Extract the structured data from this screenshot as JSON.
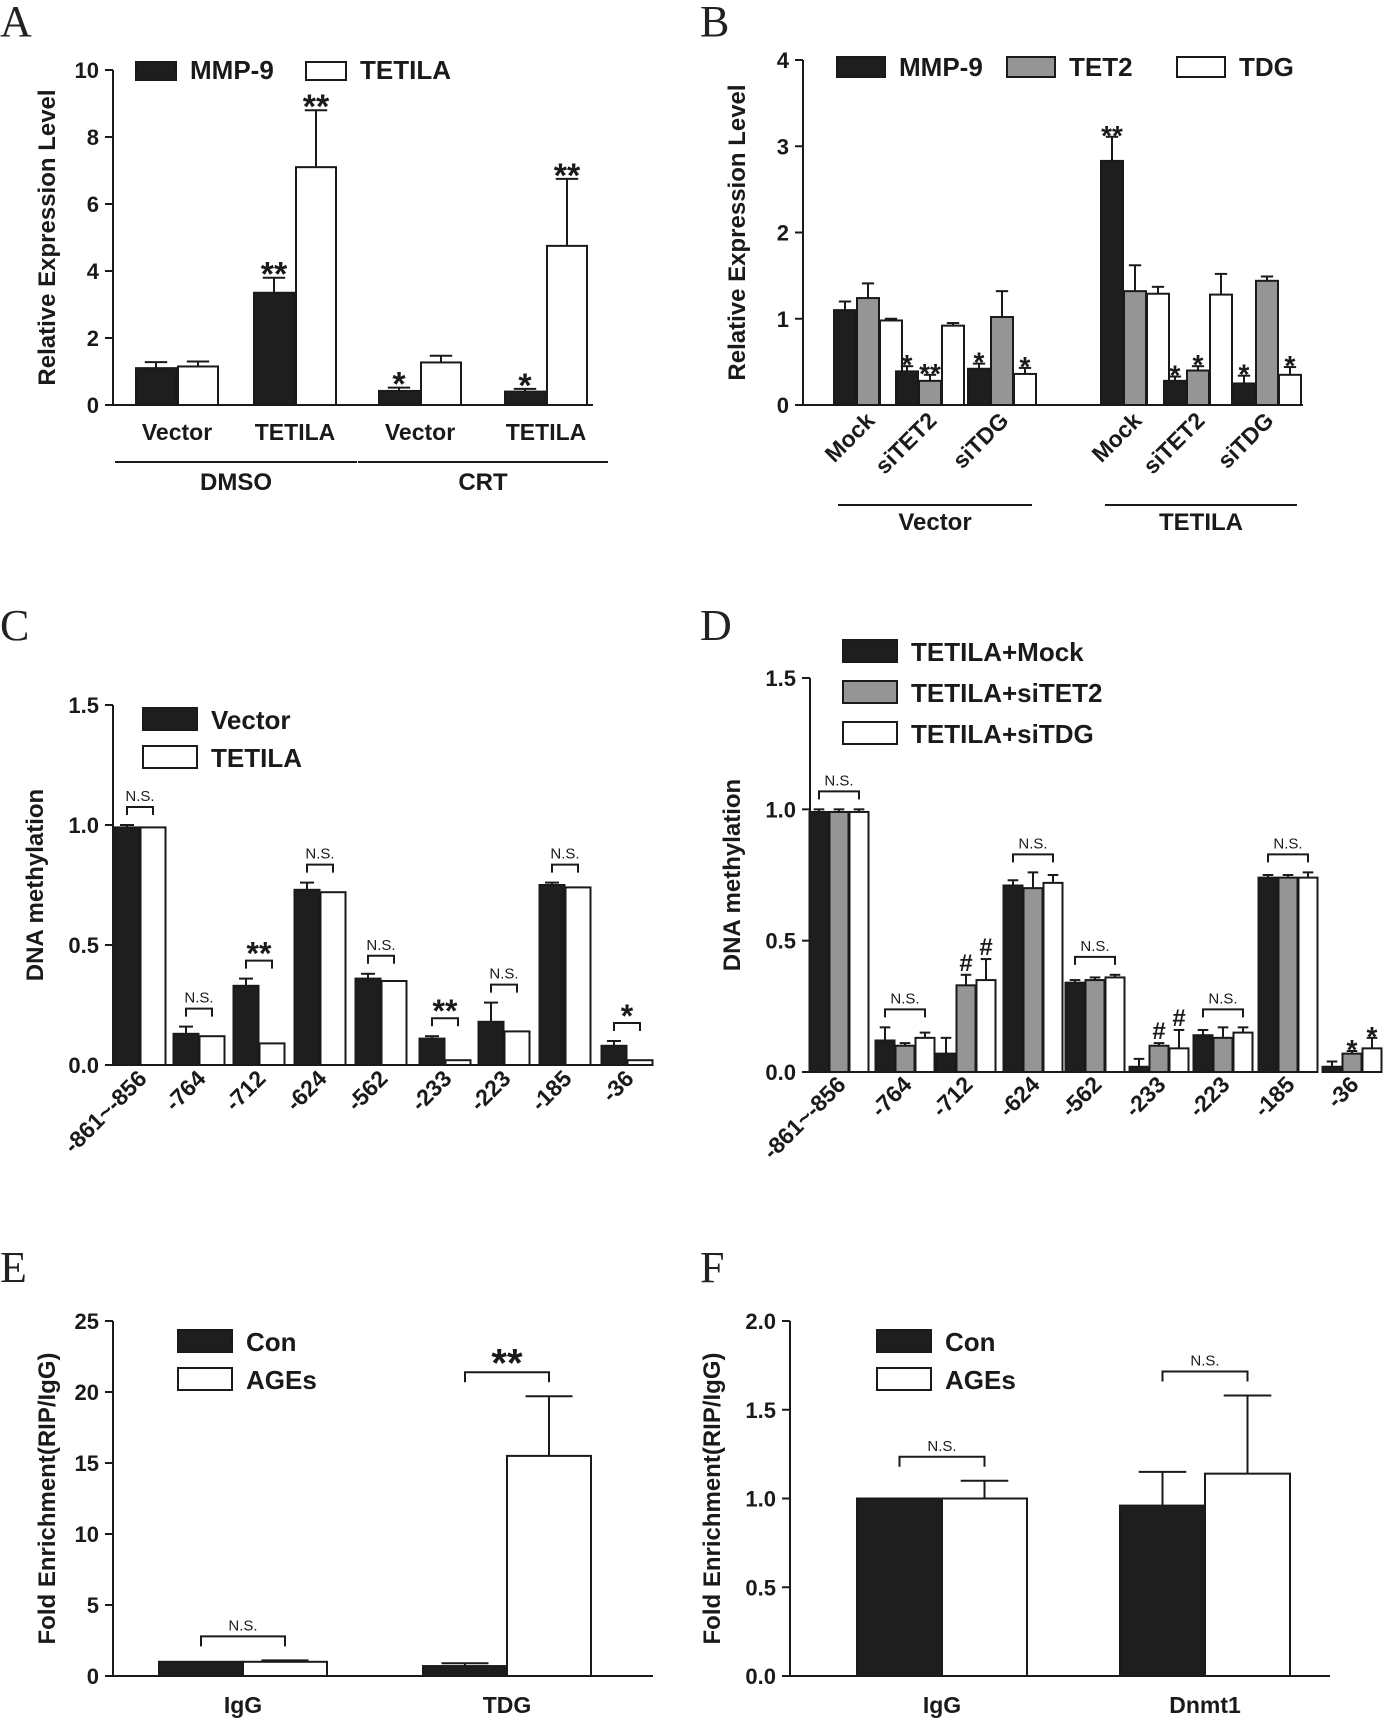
{
  "chart_data": [
    {
      "panel": "A",
      "type": "bar",
      "ylabel": "Relative Expression Level",
      "ylim": [
        0,
        10
      ],
      "yticks": [
        0,
        2,
        4,
        6,
        8,
        10
      ],
      "categories": [
        "Vector",
        "TETILA",
        "Vector",
        "TETILA"
      ],
      "groups": [
        {
          "label": "DMSO",
          "from": 0,
          "to": 1
        },
        {
          "label": "CRT",
          "from": 2,
          "to": 3
        }
      ],
      "series": [
        {
          "name": "MMP-9",
          "color": "#1e1e1e",
          "values": [
            1.1,
            3.35,
            0.42,
            0.4
          ],
          "errors": [
            0.18,
            0.45,
            0.1,
            0.08
          ],
          "sig": [
            "",
            "**",
            "*",
            "*"
          ]
        },
        {
          "name": "TETILA",
          "color": "#ffffff",
          "values": [
            1.15,
            7.1,
            1.27,
            4.75
          ],
          "errors": [
            0.15,
            1.7,
            0.2,
            2.0
          ],
          "sig": [
            "",
            "**",
            "",
            "**"
          ]
        }
      ]
    },
    {
      "panel": "B",
      "type": "bar",
      "ylabel": "Relative Expression Level",
      "ylim": [
        0,
        4
      ],
      "yticks": [
        0,
        1,
        2,
        3,
        4
      ],
      "categories": [
        "Mock",
        "siTET2",
        "siTDG",
        "Mock",
        "siTET2",
        "siTDG"
      ],
      "groups": [
        {
          "label": "Vector",
          "from": 0,
          "to": 2
        },
        {
          "label": "TETILA",
          "from": 3,
          "to": 5
        }
      ],
      "series": [
        {
          "name": "MMP-9",
          "color": "#1e1e1e",
          "values": [
            1.1,
            0.39,
            0.42,
            2.83,
            0.28,
            0.25
          ],
          "errors": [
            0.1,
            0.06,
            0.06,
            0.28,
            0.05,
            0.09
          ],
          "sig": [
            "",
            "*",
            "*",
            "**",
            "*",
            "*"
          ]
        },
        {
          "name": "TET2",
          "color": "#959595",
          "values": [
            1.24,
            0.28,
            1.02,
            1.32,
            0.4,
            1.44
          ],
          "errors": [
            0.17,
            0.07,
            0.3,
            0.3,
            0.05,
            0.05
          ],
          "sig": [
            "",
            "**",
            "",
            "",
            "*",
            ""
          ]
        },
        {
          "name": "TDG",
          "color": "#ffffff",
          "values": [
            0.98,
            0.92,
            0.36,
            1.29,
            1.28,
            0.35
          ],
          "errors": [
            0.02,
            0.03,
            0.07,
            0.08,
            0.24,
            0.09
          ],
          "sig": [
            "",
            "",
            "*",
            "",
            "",
            "*"
          ]
        }
      ]
    },
    {
      "panel": "C",
      "type": "bar",
      "ylabel": "DNA methylation",
      "ylim": [
        0,
        1.5
      ],
      "yticks": [
        "0.0",
        "0.5",
        "1.0",
        "1.5"
      ],
      "categories": [
        "-861~-856",
        "-764",
        "-712",
        "-624",
        "-562",
        "-233",
        "-223",
        "-185",
        "-36"
      ],
      "series": [
        {
          "name": "Vector",
          "color": "#1e1e1e",
          "values": [
            0.99,
            0.13,
            0.33,
            0.73,
            0.36,
            0.11,
            0.18,
            0.75,
            0.08
          ],
          "errors": [
            0.01,
            0.03,
            0.03,
            0.03,
            0.02,
            0.01,
            0.08,
            0.01,
            0.02
          ]
        },
        {
          "name": "TETILA",
          "color": "#ffffff",
          "values": [
            0.99,
            0.12,
            0.09,
            0.72,
            0.35,
            0.02,
            0.14,
            0.74,
            0.02
          ]
        }
      ],
      "annotations": [
        "N.S.",
        "N.S.",
        "**",
        "N.S.",
        "N.S.",
        "**",
        "N.S.",
        "N.S.",
        "*"
      ]
    },
    {
      "panel": "D",
      "type": "bar",
      "ylabel": "DNA methylation",
      "ylim": [
        0,
        1.5
      ],
      "yticks": [
        "0.0",
        "0.5",
        "1.0",
        "1.5"
      ],
      "categories": [
        "-861~-856",
        "-764",
        "-712",
        "-624",
        "-562",
        "-233",
        "-223",
        "-185",
        "-36"
      ],
      "series": [
        {
          "name": "TETILA+Mock",
          "color": "#1e1e1e",
          "values": [
            0.99,
            0.12,
            0.07,
            0.71,
            0.34,
            0.02,
            0.14,
            0.74,
            0.02
          ],
          "errors": [
            0.01,
            0.05,
            0.06,
            0.02,
            0.01,
            0.03,
            0.02,
            0.01,
            0.02
          ]
        },
        {
          "name": "TETILA+siTET2",
          "color": "#959595",
          "values": [
            0.99,
            0.1,
            0.33,
            0.7,
            0.35,
            0.1,
            0.13,
            0.74,
            0.07
          ],
          "errors": [
            0.01,
            0.01,
            0.04,
            0.06,
            0.01,
            0.01,
            0.04,
            0.01,
            0.01
          ],
          "sig": [
            "",
            "",
            "#",
            "",
            "",
            "#",
            "",
            "",
            "*"
          ]
        },
        {
          "name": "TETILA+siTDG",
          "color": "#ffffff",
          "values": [
            0.99,
            0.13,
            0.35,
            0.72,
            0.36,
            0.09,
            0.15,
            0.74,
            0.09
          ],
          "errors": [
            0.01,
            0.02,
            0.08,
            0.03,
            0.01,
            0.07,
            0.02,
            0.02,
            0.04
          ],
          "sig": [
            "",
            "",
            "#",
            "",
            "",
            "#",
            "",
            "",
            "*"
          ]
        }
      ],
      "annotations": [
        "N.S.",
        "N.S.",
        "",
        "N.S.",
        "N.S.",
        "",
        "N.S.",
        "N.S.",
        ""
      ]
    },
    {
      "panel": "E",
      "type": "bar",
      "ylabel": "Fold Enrichment(RIP/IgG)",
      "ylim": [
        0,
        25
      ],
      "yticks": [
        0,
        5,
        10,
        15,
        20,
        25
      ],
      "categories": [
        "IgG",
        "TDG"
      ],
      "series": [
        {
          "name": "Con",
          "color": "#1e1e1e",
          "values": [
            1.0,
            0.7
          ],
          "errors": [
            0,
            0.2
          ]
        },
        {
          "name": "AGEs",
          "color": "#ffffff",
          "values": [
            1.0,
            15.5
          ],
          "errors": [
            0.1,
            4.2
          ]
        }
      ],
      "annotations": [
        "N.S.",
        "**"
      ]
    },
    {
      "panel": "F",
      "type": "bar",
      "ylabel": "Fold Enrichment(RIP/IgG)",
      "ylim": [
        0,
        2.0
      ],
      "yticks": [
        "0.0",
        "0.5",
        "1.0",
        "1.5",
        "2.0"
      ],
      "categories": [
        "IgG",
        "Dnmt1"
      ],
      "series": [
        {
          "name": "Con",
          "color": "#1e1e1e",
          "values": [
            1.0,
            0.96
          ],
          "errors": [
            0,
            0.19
          ]
        },
        {
          "name": "AGEs",
          "color": "#ffffff",
          "values": [
            1.0,
            1.14
          ],
          "errors": [
            0.1,
            0.44
          ]
        }
      ],
      "annotations": [
        "N.S.",
        "N.S."
      ]
    }
  ]
}
